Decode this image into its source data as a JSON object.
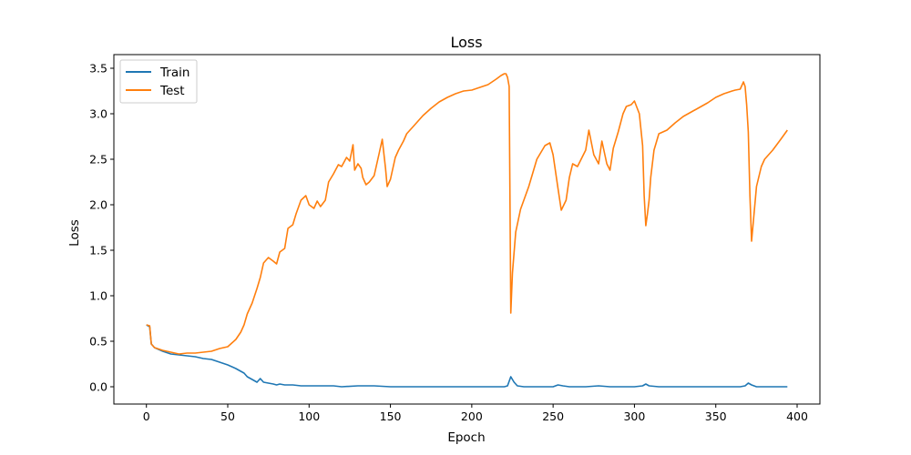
{
  "chart_data": {
    "type": "line",
    "title": "Loss",
    "xlabel": "Epoch",
    "ylabel": "Loss",
    "xlim": [
      -20,
      414
    ],
    "ylim": [
      -0.19,
      3.65
    ],
    "x_ticks": [
      0,
      50,
      100,
      150,
      200,
      250,
      300,
      350,
      400
    ],
    "y_ticks": [
      0.0,
      0.5,
      1.0,
      1.5,
      2.0,
      2.5,
      3.0,
      3.5
    ],
    "x_tick_labels": [
      "0",
      "50",
      "100",
      "150",
      "200",
      "250",
      "300",
      "350",
      "400"
    ],
    "y_tick_labels": [
      "0.0",
      "0.5",
      "1.0",
      "1.5",
      "2.0",
      "2.5",
      "3.0",
      "3.5"
    ],
    "grid": false,
    "legend_position": "top-left",
    "series": [
      {
        "name": "Train",
        "color": "#1f77b4",
        "x": [
          0,
          2,
          3,
          5,
          10,
          15,
          20,
          25,
          30,
          35,
          40,
          45,
          50,
          55,
          58,
          60,
          62,
          65,
          68,
          70,
          72,
          75,
          78,
          80,
          82,
          85,
          88,
          90,
          95,
          100,
          105,
          110,
          115,
          120,
          130,
          140,
          150,
          160,
          170,
          180,
          190,
          200,
          210,
          220,
          222,
          224,
          226,
          228,
          232,
          240,
          250,
          253,
          256,
          260,
          270,
          278,
          285,
          300,
          305,
          307,
          309,
          315,
          330,
          350,
          365,
          368,
          370,
          372,
          375,
          380,
          394
        ],
        "y": [
          0.68,
          0.66,
          0.47,
          0.43,
          0.39,
          0.36,
          0.35,
          0.34,
          0.33,
          0.31,
          0.3,
          0.27,
          0.24,
          0.2,
          0.17,
          0.15,
          0.11,
          0.08,
          0.05,
          0.09,
          0.05,
          0.04,
          0.03,
          0.02,
          0.03,
          0.02,
          0.02,
          0.02,
          0.01,
          0.01,
          0.01,
          0.01,
          0.01,
          0.0,
          0.01,
          0.01,
          0.0,
          0.0,
          0.0,
          0.0,
          0.0,
          0.0,
          0.0,
          0.0,
          0.01,
          0.11,
          0.05,
          0.01,
          0.0,
          0.0,
          0.0,
          0.02,
          0.01,
          0.0,
          0.0,
          0.01,
          0.0,
          0.0,
          0.01,
          0.03,
          0.01,
          0.0,
          0.0,
          0.0,
          0.0,
          0.01,
          0.04,
          0.02,
          0.0,
          0.0,
          0.0
        ]
      },
      {
        "name": "Test",
        "color": "#ff7f0e",
        "x": [
          0,
          2,
          3,
          5,
          10,
          15,
          20,
          25,
          30,
          35,
          40,
          45,
          50,
          55,
          58,
          60,
          62,
          65,
          68,
          70,
          72,
          75,
          78,
          80,
          82,
          85,
          87,
          90,
          92,
          95,
          98,
          100,
          103,
          105,
          107,
          110,
          112,
          115,
          118,
          120,
          123,
          125,
          127,
          128,
          130,
          132,
          133,
          135,
          137,
          140,
          143,
          145,
          147,
          148,
          150,
          153,
          155,
          158,
          160,
          165,
          170,
          175,
          180,
          185,
          190,
          195,
          200,
          205,
          210,
          215,
          218,
          220,
          221,
          222,
          223,
          224,
          225,
          227,
          230,
          235,
          240,
          245,
          248,
          250,
          253,
          255,
          258,
          260,
          262,
          265,
          270,
          272,
          275,
          278,
          280,
          283,
          285,
          287,
          290,
          293,
          295,
          298,
          300,
          303,
          305,
          306,
          307,
          308,
          309,
          310,
          312,
          315,
          320,
          325,
          330,
          335,
          340,
          345,
          350,
          355,
          360,
          362,
          365,
          367,
          368,
          369,
          370,
          371,
          372,
          373,
          375,
          378,
          380,
          385,
          390,
          394
        ],
        "y": [
          0.68,
          0.67,
          0.47,
          0.43,
          0.4,
          0.38,
          0.36,
          0.37,
          0.37,
          0.38,
          0.39,
          0.42,
          0.44,
          0.52,
          0.6,
          0.68,
          0.8,
          0.92,
          1.08,
          1.2,
          1.36,
          1.42,
          1.38,
          1.35,
          1.48,
          1.52,
          1.74,
          1.78,
          1.9,
          2.05,
          2.1,
          2.0,
          1.96,
          2.04,
          1.98,
          2.05,
          2.25,
          2.34,
          2.44,
          2.42,
          2.52,
          2.48,
          2.66,
          2.38,
          2.45,
          2.4,
          2.3,
          2.22,
          2.25,
          2.32,
          2.56,
          2.72,
          2.4,
          2.2,
          2.28,
          2.52,
          2.6,
          2.7,
          2.78,
          2.88,
          2.98,
          3.06,
          3.13,
          3.18,
          3.22,
          3.25,
          3.26,
          3.29,
          3.32,
          3.38,
          3.42,
          3.44,
          3.44,
          3.4,
          3.3,
          0.81,
          1.25,
          1.7,
          1.95,
          2.2,
          2.5,
          2.65,
          2.68,
          2.55,
          2.18,
          1.94,
          2.05,
          2.3,
          2.45,
          2.42,
          2.6,
          2.82,
          2.55,
          2.45,
          2.7,
          2.45,
          2.38,
          2.62,
          2.8,
          3.0,
          3.08,
          3.1,
          3.14,
          3.0,
          2.65,
          2.1,
          1.77,
          1.9,
          2.05,
          2.3,
          2.6,
          2.78,
          2.82,
          2.9,
          2.97,
          3.02,
          3.07,
          3.12,
          3.18,
          3.22,
          3.25,
          3.26,
          3.27,
          3.35,
          3.3,
          3.1,
          2.8,
          2.1,
          1.6,
          1.8,
          2.2,
          2.42,
          2.5,
          2.6,
          2.72,
          2.82
        ]
      }
    ]
  }
}
